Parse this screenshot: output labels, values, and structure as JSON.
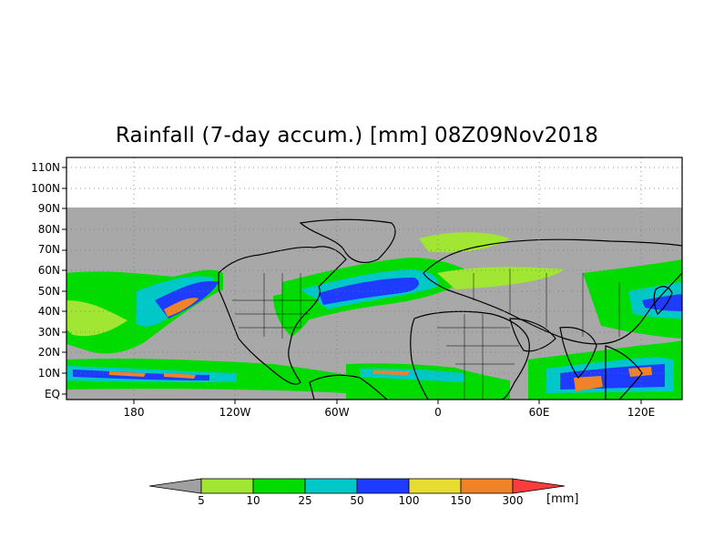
{
  "title": "Rainfall (7-day accum.) [mm] 08Z09Nov2018",
  "lat_labels": [
    "110N",
    "100N",
    "90N",
    "80N",
    "70N",
    "60N",
    "50N",
    "40N",
    "30N",
    "20N",
    "10N",
    "EQ"
  ],
  "lon_labels": [
    "180",
    "120W",
    "60W",
    "0",
    "60E",
    "120E"
  ],
  "colorbar": {
    "thresholds": [
      "5",
      "10",
      "25",
      "50",
      "100",
      "150",
      "300"
    ],
    "unit": "[mm]",
    "colors": {
      "below": "#a0a0a0",
      "5_10": "#a0e632",
      "10_25": "#00dc00",
      "25_50": "#00c8c8",
      "50_100": "#1e3cff",
      "100_150": "#e6dc32",
      "150_300": "#f08228",
      "above": "#fa3c3c"
    }
  },
  "colors": {
    "ocean_no_rain": "#a8a8a8",
    "frame": "#000000"
  }
}
